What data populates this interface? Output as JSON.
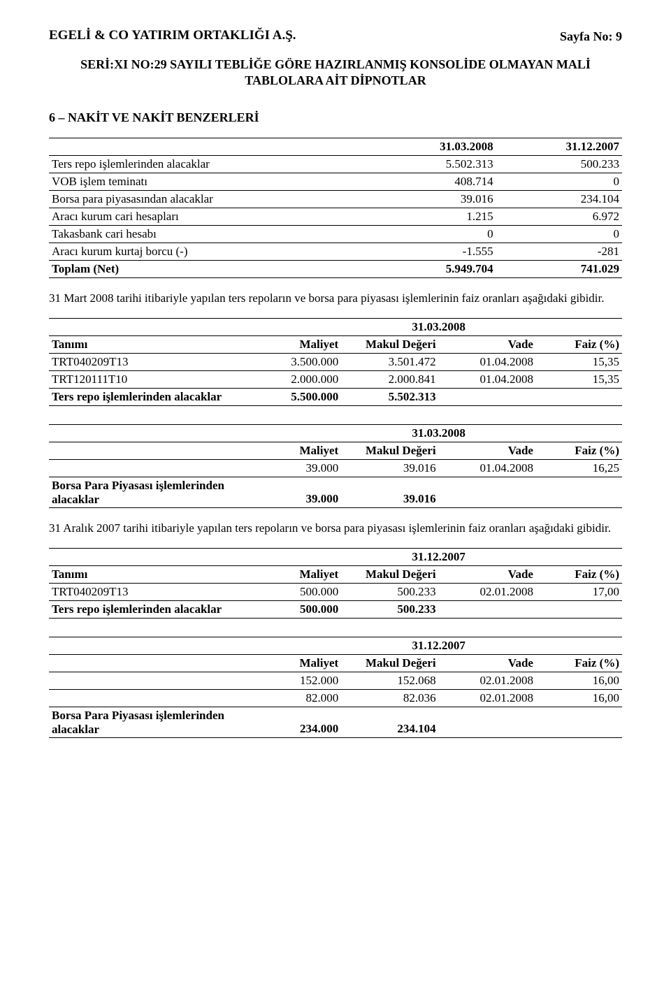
{
  "header": {
    "company": "EGELİ & CO YATIRIM ORTAKLIĞI A.Ş.",
    "pageNo": "Sayfa No: 9",
    "subtitle1": "SERİ:XI NO:29 SAYILI TEBLİĞE GÖRE HAZIRLANMIŞ KONSOLİDE OLMAYAN MALİ",
    "subtitle2": "TABLOLARA AİT DİPNOTLAR"
  },
  "section": {
    "heading": "6 – NAKİT VE NAKİT BENZERLERİ"
  },
  "table1": {
    "head": {
      "c2": "31.03.2008",
      "c3": "31.12.2007"
    },
    "rows": [
      {
        "label": "Ters repo işlemlerinden alacaklar",
        "c2": "5.502.313",
        "c3": "500.233"
      },
      {
        "label": "VOB işlem teminatı",
        "c2": "408.714",
        "c3": "0"
      },
      {
        "label": "Borsa para piyasasından alacaklar",
        "c2": "39.016",
        "c3": "234.104"
      },
      {
        "label": "Aracı kurum cari hesapları",
        "c2": "1.215",
        "c3": "6.972"
      },
      {
        "label": "Takasbank cari hesabı",
        "c2": "0",
        "c3": "0"
      },
      {
        "label": "Aracı kurum kurtaj borcu (-)",
        "c2": "-1.555",
        "c3": "-281"
      },
      {
        "label": "Toplam (Net)",
        "c2": "5.949.704",
        "c3": "741.029",
        "bold": true
      }
    ]
  },
  "para1": "31 Mart 2008 tarihi itibariyle yapılan ters repoların ve borsa para piyasası işlemlerinin faiz oranları aşağıdaki gibidir.",
  "table2": {
    "date": "31.03.2008",
    "head": {
      "c1": "Tanımı",
      "c2": "Maliyet",
      "c3": "Makul Değeri",
      "c4": "Vade",
      "c5": "Faiz (%)"
    },
    "rows": [
      {
        "c1": "TRT040209T13",
        "c2": "3.500.000",
        "c3": "3.501.472",
        "c4": "01.04.2008",
        "c5": "15,35"
      },
      {
        "c1": "TRT120111T10",
        "c2": "2.000.000",
        "c3": "2.000.841",
        "c4": "01.04.2008",
        "c5": "15,35"
      },
      {
        "c1": "Ters repo işlemlerinden alacaklar",
        "c2": "5.500.000",
        "c3": "5.502.313",
        "c4": "",
        "c5": "",
        "bold": true
      }
    ]
  },
  "table3": {
    "date": "31.03.2008",
    "head": {
      "c2": "Maliyet",
      "c3": "Makul Değeri",
      "c4": "Vade",
      "c5": "Faiz (%)"
    },
    "rows": [
      {
        "c1": "",
        "c2": "39.000",
        "c3": "39.016",
        "c4": "01.04.2008",
        "c5": "16,25"
      },
      {
        "c1a": "Borsa Para Piyasası işlemlerinden",
        "c1b": "alacaklar",
        "c2": "39.000",
        "c3": "39.016",
        "c4": "",
        "c5": "",
        "bold": true
      }
    ]
  },
  "para2": "31 Aralık 2007 tarihi itibariyle yapılan ters repoların ve borsa para piyasası işlemlerinin faiz oranları aşağıdaki gibidir.",
  "table4": {
    "date": "31.12.2007",
    "head": {
      "c1": "Tanımı",
      "c2": "Maliyet",
      "c3": "Makul Değeri",
      "c4": "Vade",
      "c5": "Faiz (%)"
    },
    "rows": [
      {
        "c1": "TRT040209T13",
        "c2": "500.000",
        "c3": "500.233",
        "c4": "02.01.2008",
        "c5": "17,00"
      },
      {
        "c1": "Ters repo işlemlerinden alacaklar",
        "c2": "500.000",
        "c3": "500.233",
        "c4": "",
        "c5": "",
        "bold": true
      }
    ]
  },
  "table5": {
    "date": "31.12.2007",
    "head": {
      "c2": "Maliyet",
      "c3": "Makul Değeri",
      "c4": "Vade",
      "c5": "Faiz (%)"
    },
    "rows": [
      {
        "c1": "",
        "c2": "152.000",
        "c3": "152.068",
        "c4": "02.01.2008",
        "c5": "16,00"
      },
      {
        "c1": "",
        "c2": "82.000",
        "c3": "82.036",
        "c4": "02.01.2008",
        "c5": "16,00"
      },
      {
        "c1a": "Borsa Para Piyasası işlemlerinden",
        "c1b": "alacaklar",
        "c2": "234.000",
        "c3": "234.104",
        "c4": "",
        "c5": "",
        "bold": true
      }
    ]
  }
}
